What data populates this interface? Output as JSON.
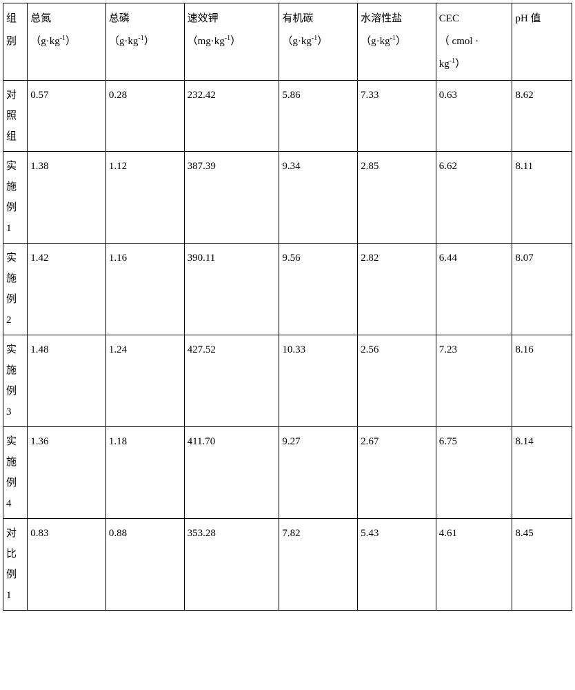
{
  "table": {
    "headers": {
      "group": "组别",
      "total_n": "总氮",
      "total_n_unit_pre": "（g·kg",
      "total_p": "总磷",
      "total_p_unit_pre": "（g·kg",
      "avail_k": "速效钾",
      "avail_k_unit_pre": "（mg·kg",
      "org_c": "有机碳",
      "org_c_unit_pre": "（g·kg",
      "salt": "水溶性盐",
      "salt_unit_pre": "（g·kg",
      "cec": "CEC",
      "cec_unit_pre": "（ cmol ·",
      "cec_unit_line2": "kg",
      "ph": "pH 值",
      "unit_sup": "-1",
      "unit_close": "）"
    },
    "rows": [
      {
        "label": "对照组",
        "n": "0.57",
        "p": "0.28",
        "k": "232.42",
        "c": "5.86",
        "salt": "7.33",
        "cec": "0.63",
        "ph": "8.62"
      },
      {
        "label": "实施例1",
        "n": "1.38",
        "p": "1.12",
        "k": "387.39",
        "c": "9.34",
        "salt": "2.85",
        "cec": "6.62",
        "ph": "8.11"
      },
      {
        "label": "实施例2",
        "n": "1.42",
        "p": "1.16",
        "k": "390.11",
        "c": "9.56",
        "salt": "2.82",
        "cec": "6.44",
        "ph": "8.07"
      },
      {
        "label": "实施例3",
        "n": "1.48",
        "p": "1.24",
        "k": "427.52",
        "c": "10.33",
        "salt": "2.56",
        "cec": "7.23",
        "ph": "8.16"
      },
      {
        "label": "实施例4",
        "n": "1.36",
        "p": "1.18",
        "k": "411.70",
        "c": "9.27",
        "salt": "2.67",
        "cec": "6.75",
        "ph": "8.14"
      },
      {
        "label": "对比例1",
        "n": "0.83",
        "p": "0.88",
        "k": "353.28",
        "c": "7.82",
        "salt": "5.43",
        "cec": "4.61",
        "ph": "8.45"
      }
    ]
  },
  "styling": {
    "border_color": "#000000",
    "background_color": "#ffffff",
    "text_color": "#000000",
    "font_size": 15,
    "line_height": 2.0
  }
}
